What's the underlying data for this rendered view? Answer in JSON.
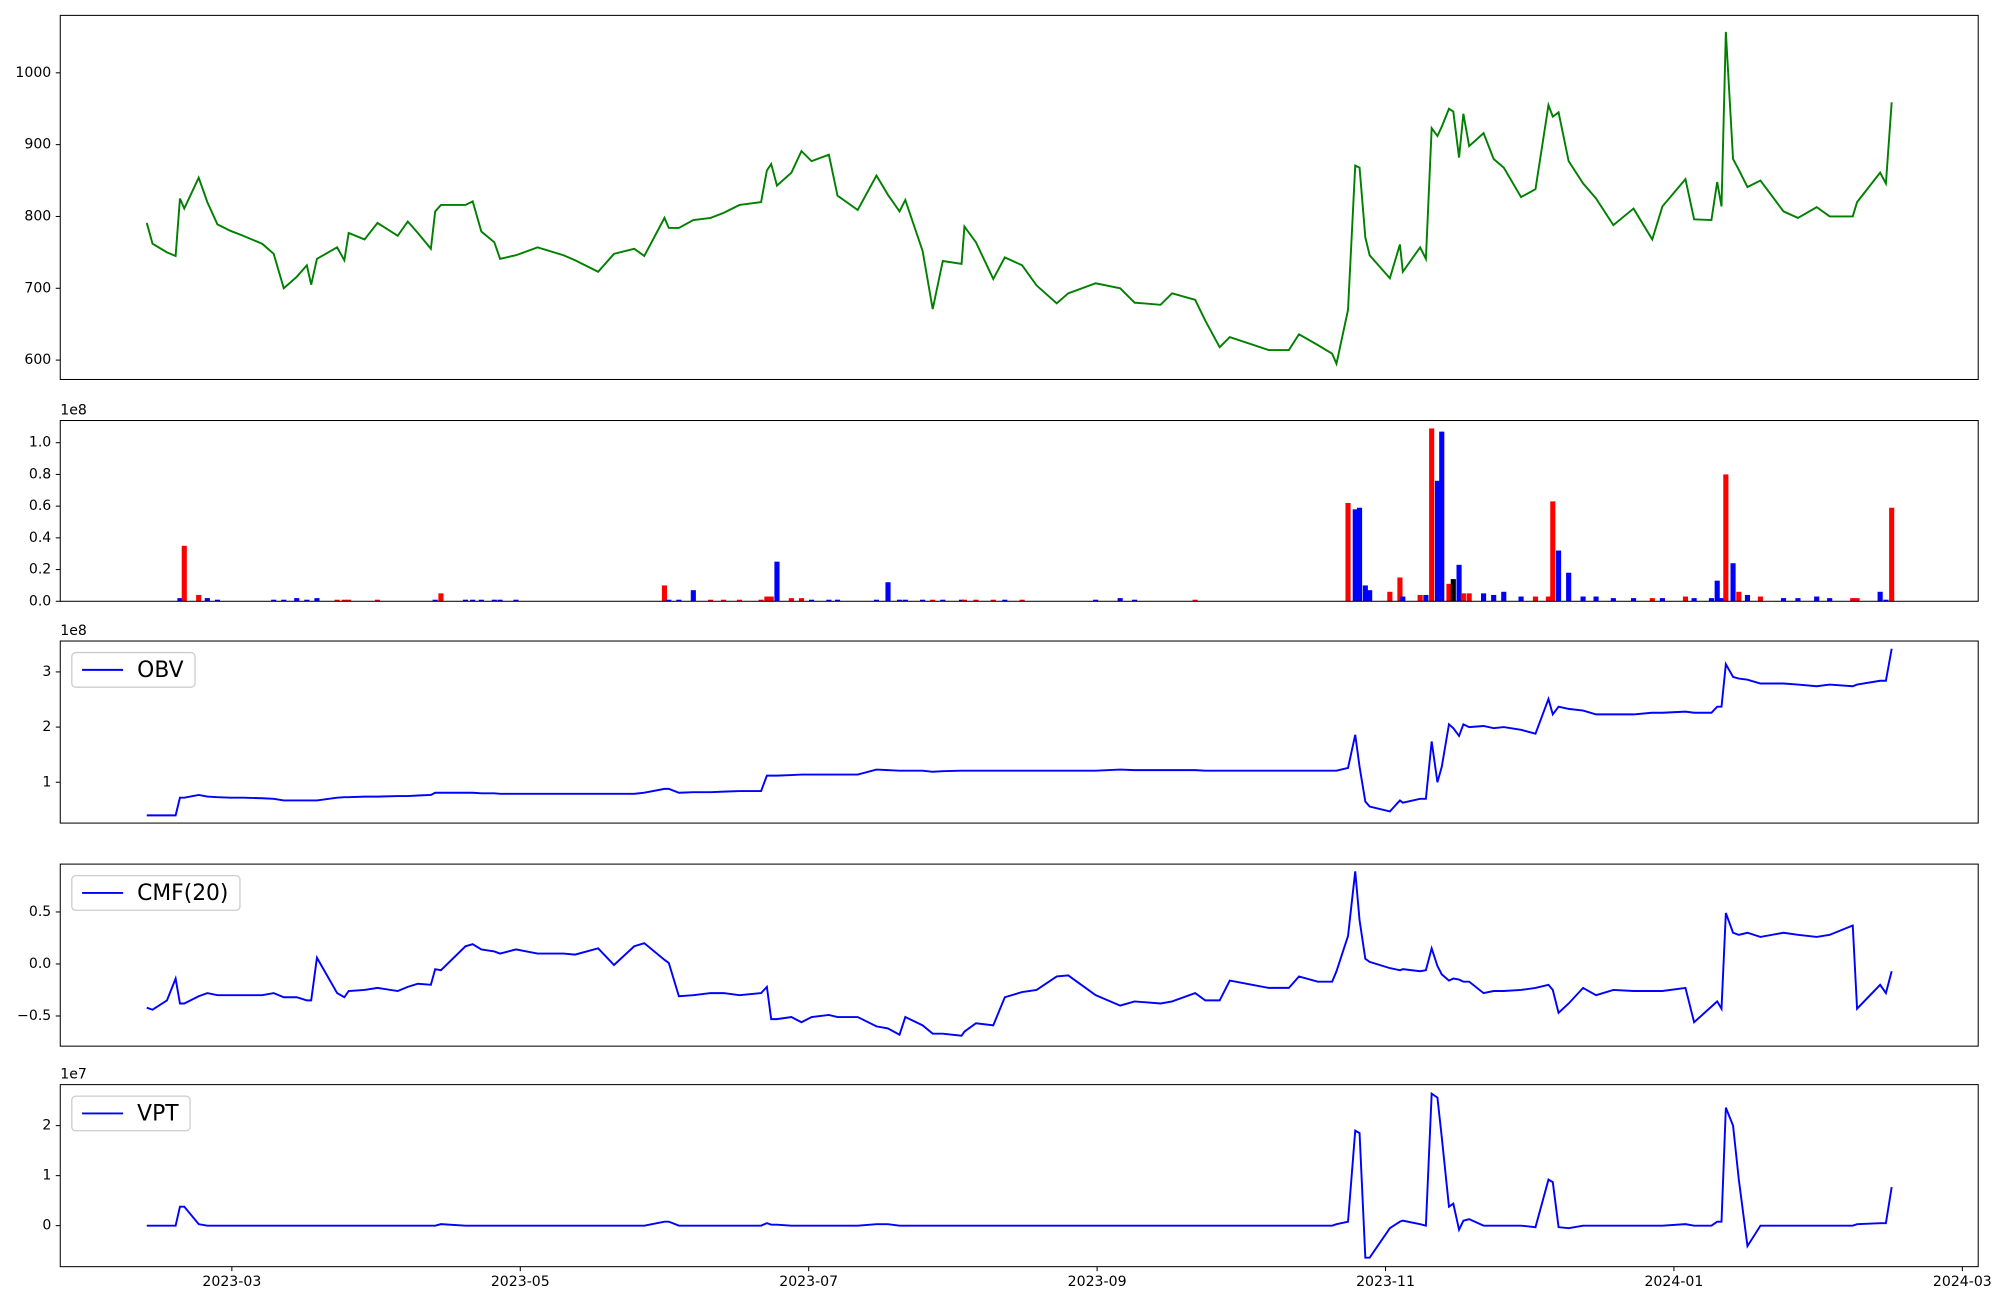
{
  "chart_data": {
    "type": "panels",
    "x": [
      2.41,
      2.45,
      2.55,
      2.61,
      2.64,
      2.67,
      2.77,
      2.83,
      2.9,
      2.99,
      3.08,
      3.21,
      3.29,
      3.36,
      3.45,
      3.52,
      3.55,
      3.59,
      3.73,
      3.78,
      3.81,
      3.92,
      4.01,
      4.15,
      4.22,
      4.29,
      4.38,
      4.41,
      4.45,
      4.62,
      4.67,
      4.73,
      4.82,
      4.86,
      4.97,
      5.12,
      5.3,
      5.38,
      5.54,
      5.65,
      5.79,
      5.86,
      6.0,
      6.03,
      6.1,
      6.2,
      6.32,
      6.41,
      6.52,
      6.67,
      6.71,
      6.74,
      6.78,
      6.88,
      6.95,
      7.02,
      7.14,
      7.2,
      7.34,
      7.47,
      7.55,
      7.63,
      7.67,
      7.79,
      7.86,
      7.93,
      8.06,
      8.08,
      8.16,
      8.28,
      8.36,
      8.48,
      8.58,
      8.72,
      8.8,
      8.99,
      9.16,
      9.26,
      9.44,
      9.52,
      9.68,
      9.75,
      9.85,
      9.92,
      10.19,
      10.33,
      10.4,
      10.53,
      10.63,
      10.66,
      10.74,
      10.79,
      10.82,
      10.86,
      10.89,
      11.03,
      11.1,
      11.12,
      11.24,
      11.28,
      11.32,
      11.36,
      11.39,
      11.44,
      11.47,
      11.51,
      11.54,
      11.58,
      11.68,
      11.75,
      11.82,
      11.94,
      12.04,
      12.13,
      12.16,
      12.2,
      12.27,
      12.37,
      12.46,
      12.58,
      12.72,
      12.85,
      12.92,
      13.08,
      13.14,
      13.26,
      13.3,
      13.33,
      13.36,
      13.41,
      13.45,
      13.51,
      13.6,
      13.76,
      13.86,
      13.99,
      14.08,
      14.24,
      14.27,
      14.43,
      14.47,
      14.51
    ],
    "xlim": [
      1.81,
      15.11
    ],
    "xticks": [
      {
        "value": 3,
        "label": "2023-03"
      },
      {
        "value": 5,
        "label": "2023-05"
      },
      {
        "value": 7,
        "label": "2023-07"
      },
      {
        "value": 9,
        "label": "2023-09"
      },
      {
        "value": 11,
        "label": "2023-11"
      },
      {
        "value": 13,
        "label": "2024-01"
      },
      {
        "value": 15,
        "label": "2024-03"
      }
    ],
    "panels": [
      {
        "type": "line",
        "color": "green",
        "ylim": [
          573,
          1080
        ],
        "yticks": [
          600,
          700,
          800,
          900,
          1000
        ],
        "values": [
          791,
          762,
          750,
          745,
          825,
          811,
          854,
          820,
          789,
          780,
          773,
          762,
          748,
          700,
          716,
          732,
          705,
          741,
          757,
          739,
          777,
          768,
          791,
          773,
          793,
          777,
          755,
          807,
          816,
          816,
          821,
          779,
          764,
          741,
          746,
          757,
          746,
          739,
          723,
          748,
          755,
          745,
          798,
          784,
          784,
          795,
          798,
          805,
          816,
          820,
          864,
          873,
          843,
          861,
          891,
          877,
          886,
          829,
          809,
          857,
          830,
          807,
          823,
          752,
          671,
          738,
          734,
          786,
          764,
          713,
          743,
          732,
          704,
          679,
          693,
          707,
          700,
          680,
          677,
          693,
          684,
          655,
          618,
          632,
          614,
          614,
          636,
          621,
          609,
          595,
          670,
          871,
          868,
          771,
          746,
          714,
          761,
          723,
          757,
          741,
          923,
          912,
          925,
          950,
          946,
          882,
          943,
          898,
          916,
          880,
          868,
          827,
          838,
          955,
          939,
          945,
          877,
          846,
          825,
          788,
          811,
          768,
          814,
          852,
          796,
          795,
          848,
          814,
          1057,
          880,
          865,
          841,
          850,
          807,
          798,
          813,
          800,
          800,
          820,
          861,
          846,
          959
        ]
      },
      {
        "type": "bar",
        "offset_label": "1e8",
        "ylim": [
          0,
          1.14
        ],
        "yticks": [
          {
            "value": 0,
            "label": "0.0"
          },
          0.2,
          0.4,
          0.6,
          0.8,
          {
            "value": 1,
            "label": "1.0"
          }
        ],
        "values": [
          0,
          0,
          0,
          0,
          0.02,
          0.35,
          0.04,
          0.02,
          0.01,
          0,
          0,
          0,
          0.01,
          0.01,
          0.02,
          0.01,
          0,
          0.02,
          0.01,
          0.01,
          0.01,
          0,
          0.01,
          0,
          0,
          0,
          0,
          0.01,
          0.05,
          0.01,
          0.01,
          0.01,
          0.01,
          0.01,
          0.01,
          0,
          0,
          0,
          0,
          0,
          0,
          0,
          0.1,
          0.01,
          0.01,
          0.07,
          0.01,
          0.01,
          0.01,
          0.01,
          0.03,
          0.03,
          0.25,
          0.02,
          0.02,
          0.01,
          0.01,
          0.01,
          0,
          0.01,
          0.12,
          0.01,
          0.01,
          0.01,
          0.01,
          0.01,
          0.01,
          0.01,
          0.01,
          0.01,
          0.01,
          0.01,
          0,
          0,
          0,
          0.01,
          0.02,
          0.01,
          0,
          0,
          0.01,
          0,
          0,
          0,
          0,
          0,
          0,
          0,
          0,
          0,
          0.62,
          0.58,
          0.59,
          0.1,
          0.07,
          0.06,
          0.15,
          0.03,
          0.04,
          0.04,
          1.09,
          0.76,
          1.07,
          0.11,
          0.14,
          0.23,
          0.05,
          0.05,
          0.05,
          0.04,
          0.06,
          0.03,
          0.03,
          0.03,
          0.63,
          0.32,
          0.18,
          0.03,
          0.03,
          0.02,
          0.02,
          0.02,
          0.02,
          0.03,
          0.02,
          0.02,
          0.13,
          0.02,
          0.8,
          0.24,
          0.06,
          0.04,
          0.03,
          0.02,
          0.02,
          0.03,
          0.02,
          0.02,
          0.02,
          0.06,
          0.01,
          0.59
        ],
        "colors": [
          "blue",
          "blue",
          "blue",
          "blue",
          "blue",
          "red",
          "red",
          "blue",
          "blue",
          "blue",
          "blue",
          "blue",
          "blue",
          "blue",
          "blue",
          "blue",
          "blue",
          "blue",
          "red",
          "red",
          "red",
          "blue",
          "red",
          "blue",
          "blue",
          "blue",
          "blue",
          "blue",
          "red",
          "blue",
          "blue",
          "blue",
          "blue",
          "blue",
          "blue",
          "blue",
          "blue",
          "blue",
          "blue",
          "blue",
          "blue",
          "blue",
          "red",
          "blue",
          "blue",
          "blue",
          "red",
          "red",
          "red",
          "red",
          "red",
          "red",
          "blue",
          "red",
          "red",
          "blue",
          "blue",
          "blue",
          "blue",
          "blue",
          "blue",
          "blue",
          "blue",
          "blue",
          "red",
          "blue",
          "blue",
          "red",
          "red",
          "red",
          "blue",
          "red",
          "blue",
          "blue",
          "blue",
          "blue",
          "blue",
          "blue",
          "blue",
          "blue",
          "red",
          "blue",
          "blue",
          "blue",
          "blue",
          "blue",
          "blue",
          "blue",
          "blue",
          "blue",
          "red",
          "blue",
          "blue",
          "blue",
          "blue",
          "red",
          "red",
          "blue",
          "red",
          "blue",
          "red",
          "blue",
          "blue",
          "red",
          "black",
          "blue",
          "red",
          "red",
          "blue",
          "blue",
          "blue",
          "blue",
          "red",
          "red",
          "red",
          "blue",
          "blue",
          "blue",
          "blue",
          "blue",
          "blue",
          "red",
          "blue",
          "red",
          "blue",
          "blue",
          "blue",
          "blue",
          "red",
          "blue",
          "red",
          "blue",
          "red",
          "blue",
          "blue",
          "blue",
          "blue",
          "red",
          "red",
          "blue",
          "blue",
          "red"
        ]
      },
      {
        "type": "line",
        "offset_label": "1e8",
        "legend": "upper left",
        "ylim": [
          0.26,
          3.56
        ],
        "yticks": [
          1,
          2,
          3
        ],
        "series": [
          {
            "name": "OBV",
            "color": "blue",
            "values": [
              0.4,
              0.4,
              0.4,
              0.4,
              0.72,
              0.72,
              0.77,
              0.74,
              0.73,
              0.72,
              0.72,
              0.71,
              0.7,
              0.67,
              0.67,
              0.67,
              0.67,
              0.67,
              0.72,
              0.73,
              0.73,
              0.74,
              0.74,
              0.75,
              0.75,
              0.76,
              0.77,
              0.81,
              0.81,
              0.81,
              0.81,
              0.8,
              0.8,
              0.79,
              0.79,
              0.79,
              0.79,
              0.79,
              0.79,
              0.79,
              0.79,
              0.81,
              0.88,
              0.88,
              0.81,
              0.82,
              0.82,
              0.83,
              0.84,
              0.84,
              1.12,
              1.12,
              1.12,
              1.13,
              1.14,
              1.14,
              1.14,
              1.14,
              1.14,
              1.23,
              1.22,
              1.21,
              1.21,
              1.21,
              1.19,
              1.2,
              1.21,
              1.21,
              1.21,
              1.21,
              1.21,
              1.21,
              1.21,
              1.21,
              1.21,
              1.21,
              1.23,
              1.22,
              1.22,
              1.22,
              1.22,
              1.21,
              1.21,
              1.21,
              1.21,
              1.21,
              1.21,
              1.21,
              1.21,
              1.21,
              1.26,
              1.86,
              1.28,
              0.65,
              0.56,
              0.47,
              0.67,
              0.63,
              0.7,
              0.7,
              1.74,
              1.0,
              1.28,
              2.05,
              1.98,
              1.84,
              2.05,
              2.0,
              2.02,
              1.98,
              2.0,
              1.95,
              1.88,
              2.51,
              2.23,
              2.37,
              2.33,
              2.3,
              2.23,
              2.23,
              2.23,
              2.26,
              2.26,
              2.28,
              2.26,
              2.26,
              2.37,
              2.37,
              3.14,
              2.91,
              2.88,
              2.86,
              2.79,
              2.79,
              2.77,
              2.74,
              2.77,
              2.74,
              2.77,
              2.84,
              2.84,
              3.42
            ]
          }
        ]
      },
      {
        "type": "line",
        "legend": "upper left",
        "ylim": [
          -0.79,
          0.96
        ],
        "yticks": [
          {
            "value": -0.5,
            "label": "−0.5"
          },
          {
            "value": 0,
            "label": "0.0"
          },
          0.5
        ],
        "series": [
          {
            "name": "CMF(20)",
            "color": "blue",
            "values": [
              -0.42,
              -0.44,
              -0.35,
              -0.14,
              -0.38,
              -0.38,
              -0.31,
              -0.28,
              -0.3,
              -0.3,
              -0.3,
              -0.3,
              -0.28,
              -0.32,
              -0.32,
              -0.35,
              -0.35,
              0.06,
              -0.28,
              -0.32,
              -0.26,
              -0.25,
              -0.23,
              -0.26,
              -0.22,
              -0.19,
              -0.2,
              -0.05,
              -0.06,
              0.17,
              0.19,
              0.14,
              0.12,
              0.1,
              0.14,
              0.1,
              0.1,
              0.09,
              0.15,
              -0.01,
              0.17,
              0.2,
              0.04,
              0.01,
              -0.31,
              -0.3,
              -0.28,
              -0.28,
              -0.3,
              -0.28,
              -0.22,
              -0.53,
              -0.53,
              -0.51,
              -0.56,
              -0.51,
              -0.49,
              -0.51,
              -0.51,
              -0.6,
              -0.62,
              -0.68,
              -0.51,
              -0.59,
              -0.67,
              -0.67,
              -0.69,
              -0.65,
              -0.57,
              -0.59,
              -0.32,
              -0.27,
              -0.25,
              -0.12,
              -0.11,
              -0.3,
              -0.4,
              -0.36,
              -0.38,
              -0.36,
              -0.28,
              -0.35,
              -0.35,
              -0.16,
              -0.23,
              -0.23,
              -0.12,
              -0.17,
              -0.17,
              -0.07,
              0.27,
              0.89,
              0.42,
              0.05,
              0.02,
              -0.04,
              -0.06,
              -0.05,
              -0.07,
              -0.06,
              0.15,
              -0.02,
              -0.1,
              -0.16,
              -0.14,
              -0.15,
              -0.17,
              -0.17,
              -0.28,
              -0.26,
              -0.26,
              -0.25,
              -0.23,
              -0.2,
              -0.25,
              -0.47,
              -0.38,
              -0.23,
              -0.3,
              -0.25,
              -0.26,
              -0.26,
              -0.26,
              -0.23,
              -0.56,
              -0.41,
              -0.36,
              -0.43,
              0.49,
              0.3,
              0.28,
              0.3,
              0.26,
              0.3,
              0.28,
              0.26,
              0.28,
              0.37,
              -0.43,
              -0.2,
              -0.28,
              -0.07
            ]
          }
        ]
      },
      {
        "type": "line",
        "offset_label": "1e7",
        "legend": "upper left",
        "ylim": [
          -0.82,
          2.82
        ],
        "yticks": [
          0,
          1,
          2
        ],
        "series": [
          {
            "name": "VPT",
            "color": "blue",
            "values": [
              0,
              0,
              0,
              0,
              0.38,
              0.38,
              0.03,
              0,
              0,
              0,
              0,
              0,
              0,
              0,
              0,
              0,
              0,
              0,
              0,
              0,
              0,
              0,
              0,
              0,
              0,
              0,
              0,
              0,
              0.03,
              0,
              0,
              0,
              0,
              0,
              0,
              0,
              0,
              0,
              0,
              0,
              0,
              0,
              0.08,
              0.08,
              0,
              0,
              0,
              0,
              0,
              0,
              0.05,
              0.02,
              0.02,
              0,
              0,
              0,
              0,
              0,
              0,
              0.03,
              0.03,
              0,
              0,
              0,
              0,
              0,
              0,
              0,
              0,
              0,
              0,
              0,
              0,
              0,
              0,
              0,
              0,
              0,
              0,
              0,
              0,
              0,
              0,
              0,
              0,
              0,
              0,
              0,
              0,
              0.03,
              0.08,
              1.9,
              1.85,
              -0.64,
              -0.64,
              -0.05,
              0.08,
              0.1,
              0.03,
              0,
              2.64,
              2.56,
              1.77,
              0.38,
              0.44,
              -0.08,
              0.1,
              0.13,
              0,
              0,
              0,
              0,
              -0.03,
              0.92,
              0.87,
              -0.03,
              -0.05,
              0,
              0,
              0,
              0,
              0,
              0,
              0.03,
              0,
              0,
              0.08,
              0.08,
              2.36,
              2.0,
              0.92,
              -0.41,
              0,
              0,
              0,
              0,
              0,
              0,
              0.03,
              0.05,
              0.05,
              0.77
            ]
          }
        ]
      }
    ]
  }
}
